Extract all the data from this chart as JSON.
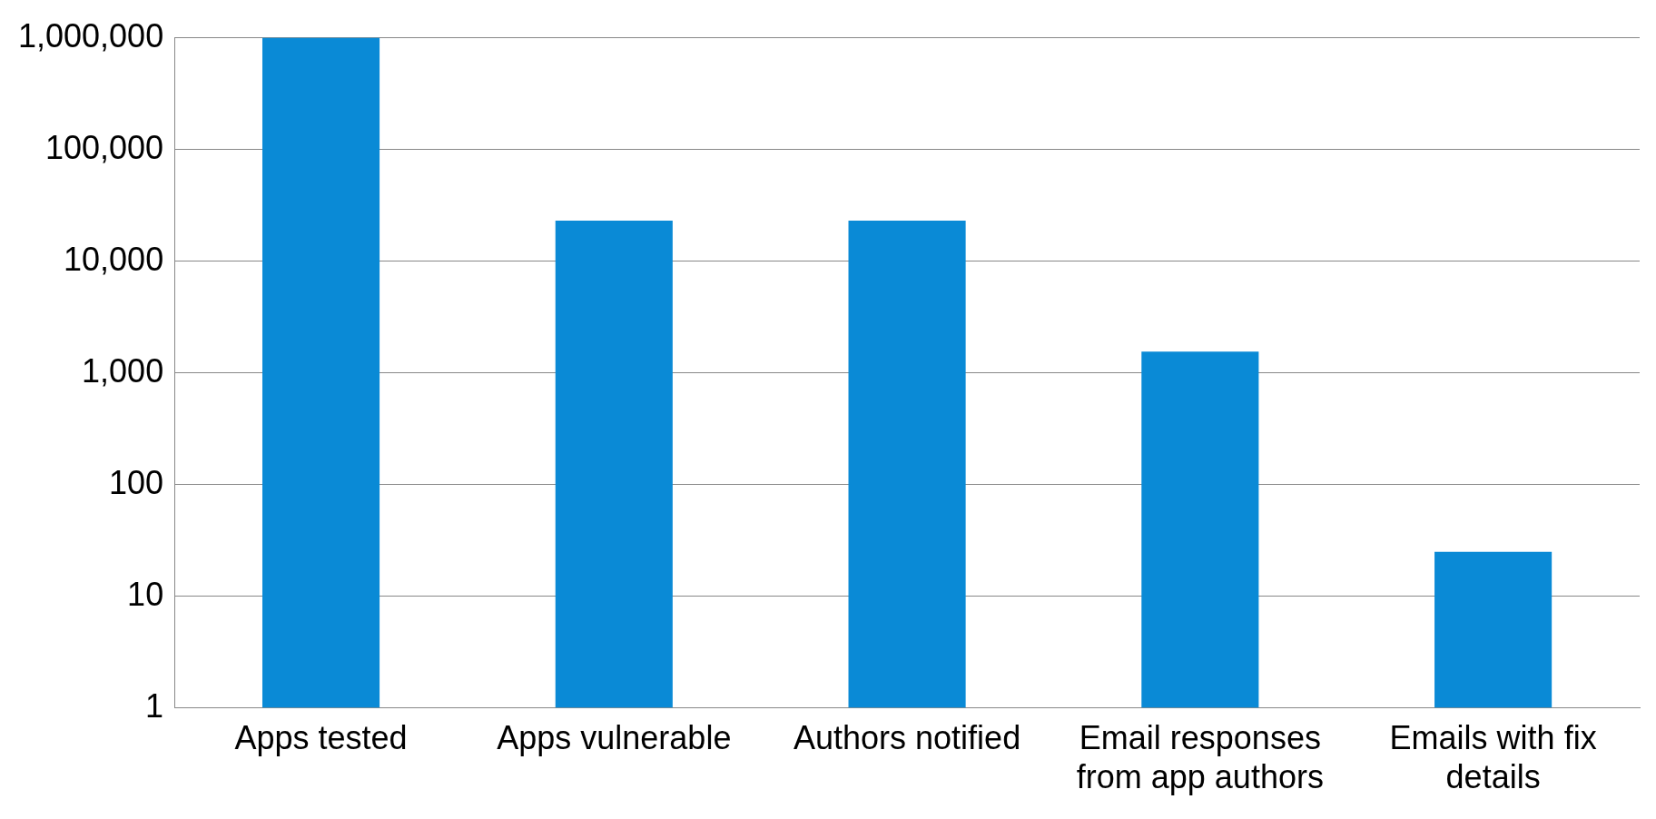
{
  "chart_data": {
    "type": "bar",
    "categories": [
      "Apps tested",
      "Apps vulnerable",
      "Authors notified",
      "Email responses from app authors",
      "Emails with fix details"
    ],
    "values": [
      1000000,
      23000,
      23000,
      1550,
      25
    ],
    "color": "#0a8ad6",
    "log": "y",
    "ylim": [
      1,
      1000000
    ],
    "yticks": [
      {
        "value": 1,
        "label": "1"
      },
      {
        "value": 10,
        "label": "10"
      },
      {
        "value": 100,
        "label": "100"
      },
      {
        "value": 1000,
        "label": "1,000"
      },
      {
        "value": 10000,
        "label": "10,000"
      },
      {
        "value": 100000,
        "label": "100,000"
      },
      {
        "value": 1000000,
        "label": "1,000,000"
      }
    ],
    "grid": "y",
    "legend": false
  }
}
